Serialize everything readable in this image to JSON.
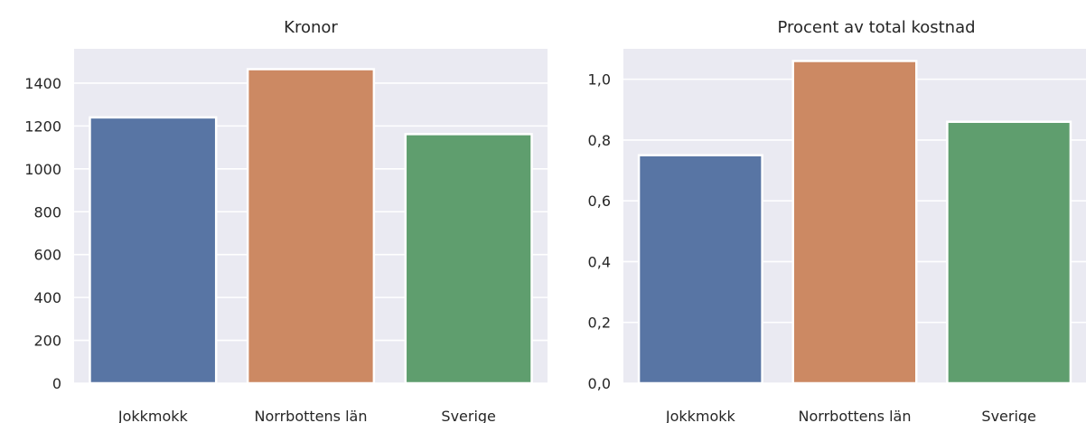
{
  "chart_data": [
    {
      "type": "bar",
      "title": "Kronor",
      "categories": [
        "Jokkmokk",
        "Norrbottens län",
        "Sverige"
      ],
      "values": [
        1240,
        1465,
        1162
      ],
      "colors": [
        "#5875a4",
        "#cc8963",
        "#5f9e6e"
      ],
      "ylim": [
        0,
        1560
      ],
      "yticks": [
        0,
        200,
        400,
        600,
        800,
        1000,
        1200,
        1400
      ],
      "ytick_labels": [
        "0",
        "200",
        "400",
        "600",
        "800",
        "1000",
        "1200",
        "1400"
      ],
      "grid": true
    },
    {
      "type": "bar",
      "title": "Procent av total kostnad",
      "categories": [
        "Jokkmokk",
        "Norrbottens län",
        "Sverige"
      ],
      "values": [
        0.75,
        1.06,
        0.86
      ],
      "colors": [
        "#5875a4",
        "#cc8963",
        "#5f9e6e"
      ],
      "ylim": [
        0,
        1.1
      ],
      "yticks": [
        0,
        0.2,
        0.4,
        0.6,
        0.8,
        1.0
      ],
      "ytick_labels": [
        "0,0",
        "0,2",
        "0,4",
        "0,6",
        "0,8",
        "1,0"
      ],
      "grid": true
    }
  ]
}
